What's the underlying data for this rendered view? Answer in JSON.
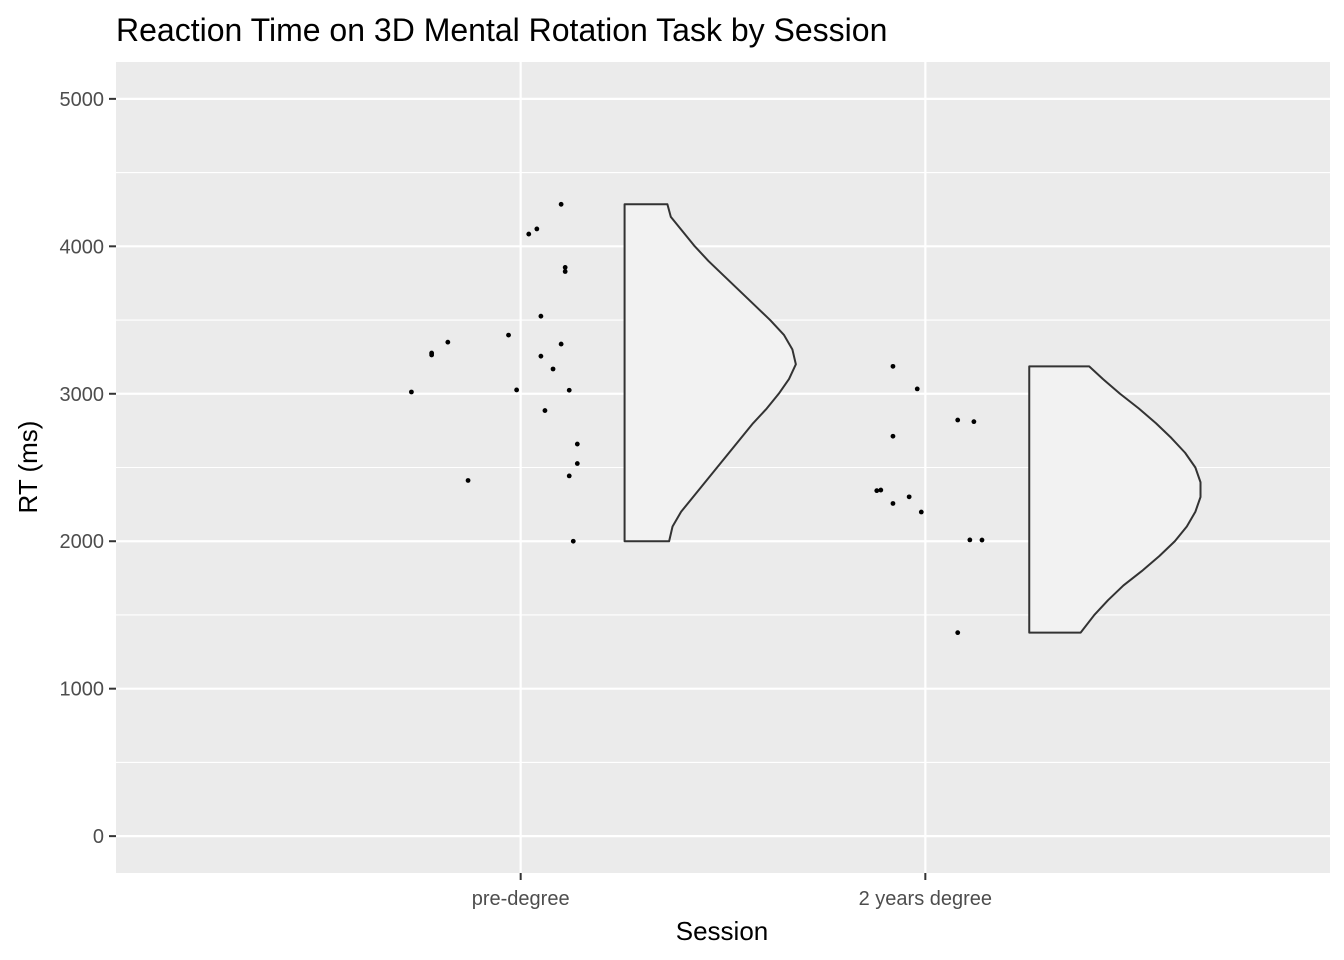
{
  "chart_data": {
    "type": "violin",
    "title": "Reaction Time on 3D Mental Rotation Task by Session",
    "xlabel": "Session",
    "ylabel": "RT (ms)",
    "categories": [
      "pre-degree",
      "2 years degree"
    ],
    "ylim": [
      -250,
      5250
    ],
    "yticks": [
      0,
      1000,
      2000,
      3000,
      4000,
      5000
    ],
    "ytick_labels": [
      "0",
      "1000",
      "2000",
      "3000",
      "4000",
      "5000"
    ],
    "grid": true,
    "legend": "none",
    "colors": {
      "panel_background": "#ebebeb",
      "grid_major": "#ffffff",
      "violin_fill": "#f2f2f2",
      "violin_outline": "#333333",
      "point": "#000000"
    },
    "series": [
      {
        "category": "pre-degree",
        "points": [
          {
            "offset": -0.27,
            "y": 3012
          },
          {
            "offset": -0.22,
            "y": 3263
          },
          {
            "offset": -0.22,
            "y": 3276
          },
          {
            "offset": -0.18,
            "y": 3350
          },
          {
            "offset": -0.13,
            "y": 2412
          },
          {
            "offset": -0.03,
            "y": 3398
          },
          {
            "offset": -0.01,
            "y": 3026
          },
          {
            "offset": 0.02,
            "y": 4083
          },
          {
            "offset": 0.04,
            "y": 4118
          },
          {
            "offset": 0.05,
            "y": 3255
          },
          {
            "offset": 0.05,
            "y": 3526
          },
          {
            "offset": 0.06,
            "y": 2886
          },
          {
            "offset": 0.08,
            "y": 3168
          },
          {
            "offset": 0.1,
            "y": 4285
          },
          {
            "offset": 0.1,
            "y": 3337
          },
          {
            "offset": 0.11,
            "y": 3857
          },
          {
            "offset": 0.11,
            "y": 3829
          },
          {
            "offset": 0.12,
            "y": 3024
          },
          {
            "offset": 0.12,
            "y": 2443
          },
          {
            "offset": 0.13,
            "y": 2000
          },
          {
            "offset": 0.14,
            "y": 2527
          },
          {
            "offset": 0.14,
            "y": 2659
          }
        ],
        "violin": {
          "y": [
            2000,
            2100,
            2200,
            2300,
            2400,
            2500,
            2600,
            2700,
            2800,
            2900,
            3000,
            3100,
            3200,
            3300,
            3400,
            3500,
            3600,
            3700,
            3800,
            3900,
            4000,
            4100,
            4200,
            4285
          ],
          "density": [
            0.26,
            0.28,
            0.33,
            0.4,
            0.47,
            0.54,
            0.61,
            0.68,
            0.75,
            0.83,
            0.9,
            0.96,
            1.0,
            0.98,
            0.93,
            0.85,
            0.76,
            0.67,
            0.58,
            0.49,
            0.41,
            0.34,
            0.27,
            0.25
          ]
        }
      },
      {
        "category": "2 years degree",
        "points": [
          {
            "offset": -0.12,
            "y": 2343
          },
          {
            "offset": -0.11,
            "y": 2347
          },
          {
            "offset": -0.08,
            "y": 3186
          },
          {
            "offset": -0.08,
            "y": 2712
          },
          {
            "offset": -0.08,
            "y": 2256
          },
          {
            "offset": -0.04,
            "y": 2301
          },
          {
            "offset": -0.02,
            "y": 3033
          },
          {
            "offset": -0.01,
            "y": 2198
          },
          {
            "offset": 0.08,
            "y": 2822
          },
          {
            "offset": 0.08,
            "y": 1380
          },
          {
            "offset": 0.11,
            "y": 2009
          },
          {
            "offset": 0.12,
            "y": 2811
          },
          {
            "offset": 0.14,
            "y": 2008
          }
        ],
        "violin": {
          "y": [
            1380,
            1500,
            1600,
            1700,
            1800,
            1900,
            2000,
            2100,
            2200,
            2300,
            2400,
            2500,
            2600,
            2700,
            2800,
            2900,
            3000,
            3100,
            3186
          ],
          "density": [
            0.3,
            0.38,
            0.46,
            0.55,
            0.66,
            0.76,
            0.85,
            0.92,
            0.97,
            1.0,
            1.0,
            0.97,
            0.91,
            0.83,
            0.74,
            0.64,
            0.53,
            0.43,
            0.35
          ]
        }
      }
    ]
  }
}
